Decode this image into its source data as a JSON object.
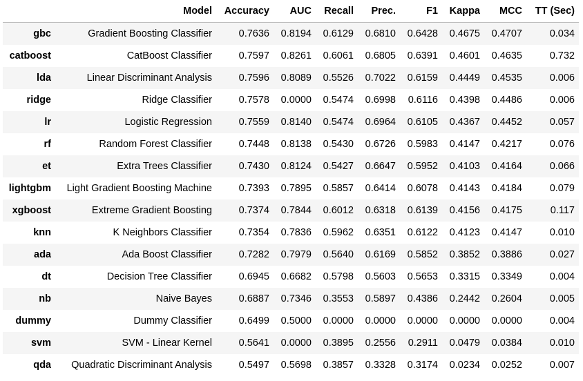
{
  "table": {
    "columns": [
      "Model",
      "Accuracy",
      "AUC",
      "Recall",
      "Prec.",
      "F1",
      "Kappa",
      "MCC",
      "TT (Sec)"
    ],
    "rows": [
      {
        "id": "gbc",
        "cells": [
          "Gradient Boosting Classifier",
          "0.7636",
          "0.8194",
          "0.6129",
          "0.6810",
          "0.6428",
          "0.4675",
          "0.4707",
          "0.034"
        ]
      },
      {
        "id": "catboost",
        "cells": [
          "CatBoost Classifier",
          "0.7597",
          "0.8261",
          "0.6061",
          "0.6805",
          "0.6391",
          "0.4601",
          "0.4635",
          "0.732"
        ]
      },
      {
        "id": "lda",
        "cells": [
          "Linear Discriminant Analysis",
          "0.7596",
          "0.8089",
          "0.5526",
          "0.7022",
          "0.6159",
          "0.4449",
          "0.4535",
          "0.006"
        ]
      },
      {
        "id": "ridge",
        "cells": [
          "Ridge Classifier",
          "0.7578",
          "0.0000",
          "0.5474",
          "0.6998",
          "0.6116",
          "0.4398",
          "0.4486",
          "0.006"
        ]
      },
      {
        "id": "lr",
        "cells": [
          "Logistic Regression",
          "0.7559",
          "0.8140",
          "0.5474",
          "0.6964",
          "0.6105",
          "0.4367",
          "0.4452",
          "0.057"
        ]
      },
      {
        "id": "rf",
        "cells": [
          "Random Forest Classifier",
          "0.7448",
          "0.8138",
          "0.5430",
          "0.6726",
          "0.5983",
          "0.4147",
          "0.4217",
          "0.076"
        ]
      },
      {
        "id": "et",
        "cells": [
          "Extra Trees Classifier",
          "0.7430",
          "0.8124",
          "0.5427",
          "0.6647",
          "0.5952",
          "0.4103",
          "0.4164",
          "0.066"
        ]
      },
      {
        "id": "lightgbm",
        "cells": [
          "Light Gradient Boosting Machine",
          "0.7393",
          "0.7895",
          "0.5857",
          "0.6414",
          "0.6078",
          "0.4143",
          "0.4184",
          "0.079"
        ]
      },
      {
        "id": "xgboost",
        "cells": [
          "Extreme Gradient Boosting",
          "0.7374",
          "0.7844",
          "0.6012",
          "0.6318",
          "0.6139",
          "0.4156",
          "0.4175",
          "0.117"
        ]
      },
      {
        "id": "knn",
        "cells": [
          "K Neighbors Classifier",
          "0.7354",
          "0.7836",
          "0.5962",
          "0.6351",
          "0.6122",
          "0.4123",
          "0.4147",
          "0.010"
        ]
      },
      {
        "id": "ada",
        "cells": [
          "Ada Boost Classifier",
          "0.7282",
          "0.7979",
          "0.5640",
          "0.6169",
          "0.5852",
          "0.3852",
          "0.3886",
          "0.027"
        ]
      },
      {
        "id": "dt",
        "cells": [
          "Decision Tree Classifier",
          "0.6945",
          "0.6682",
          "0.5798",
          "0.5603",
          "0.5653",
          "0.3315",
          "0.3349",
          "0.004"
        ]
      },
      {
        "id": "nb",
        "cells": [
          "Naive Bayes",
          "0.6887",
          "0.7346",
          "0.3553",
          "0.5897",
          "0.4386",
          "0.2442",
          "0.2604",
          "0.005"
        ]
      },
      {
        "id": "dummy",
        "cells": [
          "Dummy Classifier",
          "0.6499",
          "0.5000",
          "0.0000",
          "0.0000",
          "0.0000",
          "0.0000",
          "0.0000",
          "0.004"
        ]
      },
      {
        "id": "svm",
        "cells": [
          "SVM - Linear Kernel",
          "0.5641",
          "0.0000",
          "0.3895",
          "0.2556",
          "0.2911",
          "0.0479",
          "0.0384",
          "0.010"
        ]
      },
      {
        "id": "qda",
        "cells": [
          "Quadratic Discriminant Analysis",
          "0.5497",
          "0.5698",
          "0.3857",
          "0.3328",
          "0.3174",
          "0.0234",
          "0.0252",
          "0.007"
        ]
      }
    ]
  }
}
